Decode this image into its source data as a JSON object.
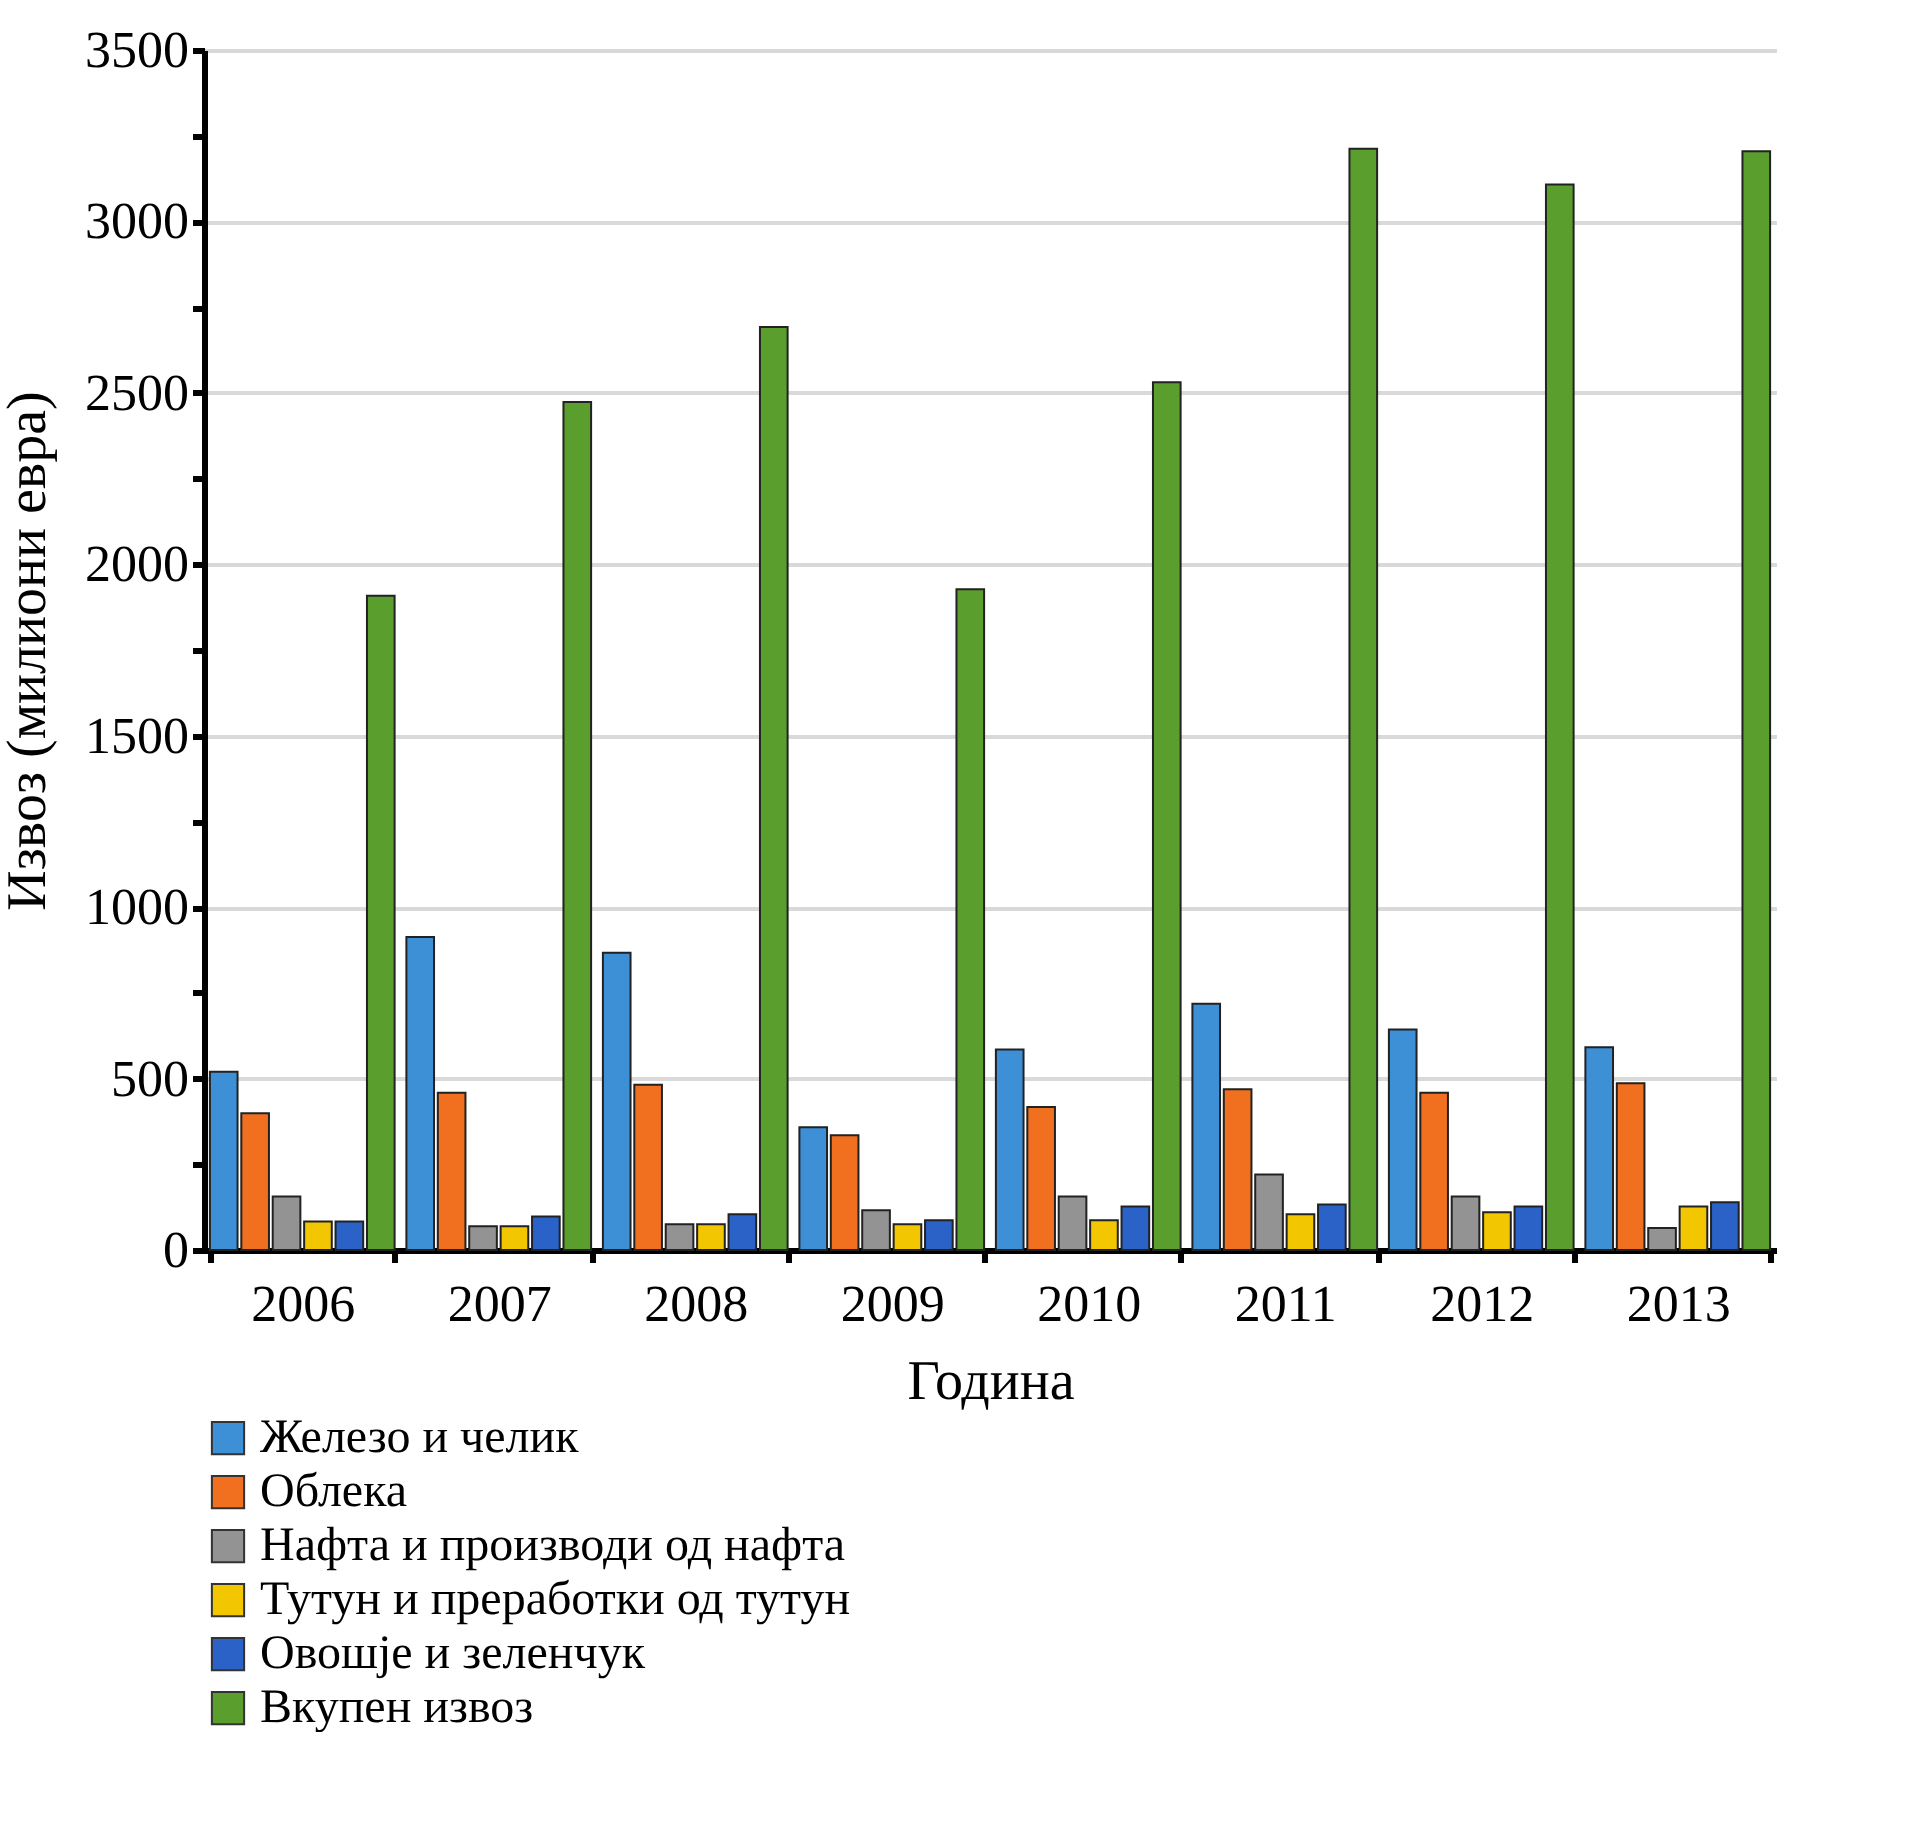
{
  "chart_data": {
    "type": "bar",
    "xlabel": "Година",
    "ylabel": "Извоз (милиони евра)",
    "categories": [
      "2006",
      "2007",
      "2008",
      "2009",
      "2010",
      "2011",
      "2012",
      "2013"
    ],
    "series": [
      {
        "name": "Железо и челик",
        "color": "#3d8fd6",
        "values": [
          520,
          913,
          867,
          358,
          585,
          718,
          643,
          591
        ]
      },
      {
        "name": "Облека",
        "color": "#f07020",
        "values": [
          399,
          459,
          482,
          335,
          417,
          469,
          459,
          486
        ]
      },
      {
        "name": "Нафта и производи од  нафта",
        "color": "#939393",
        "values": [
          156,
          69,
          75,
          116,
          156,
          220,
          156,
          64
        ]
      },
      {
        "name": "Тутун и преработки од тутун",
        "color": "#f2c600",
        "values": [
          83,
          69,
          75,
          75,
          87,
          104,
          110,
          127
        ]
      },
      {
        "name": "Овошје и зеленчук",
        "color": "#2a62c8",
        "values": [
          83,
          98,
          104,
          87,
          127,
          133,
          127,
          139
        ]
      },
      {
        "name": "Вкупен извоз",
        "color": "#5a9e2e",
        "values": [
          1908,
          2473,
          2692,
          1927,
          2531,
          3212,
          3108,
          3205
        ]
      }
    ],
    "ylim": [
      0,
      3500
    ],
    "yticks": [
      0,
      {
        "value": 250,
        "label": null
      },
      500,
      {
        "value": 750,
        "label": null
      },
      1000,
      {
        "value": 1250,
        "label": null
      },
      1500,
      {
        "value": 1750,
        "label": null
      },
      2000,
      {
        "value": 2250,
        "label": null
      },
      2500,
      {
        "value": 2750,
        "label": null
      },
      3000,
      {
        "value": 3250,
        "label": null
      },
      3500
    ],
    "grid": "y",
    "legend": "bottom"
  }
}
